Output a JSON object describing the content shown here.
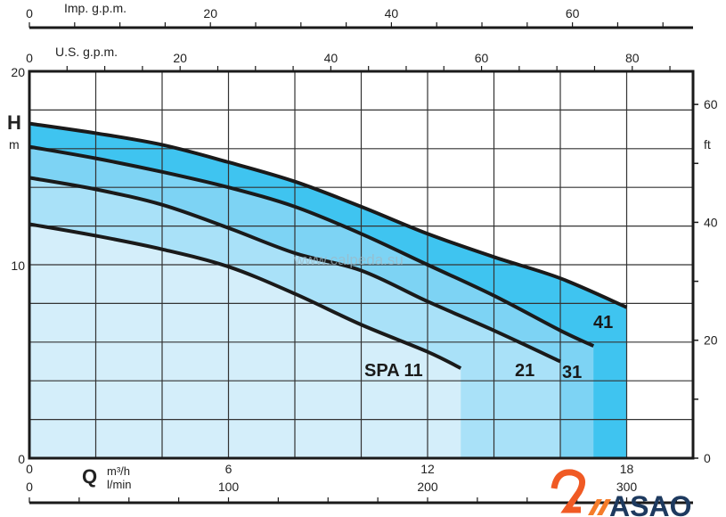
{
  "chart_data": {
    "type": "line",
    "title": "",
    "xlabel": "Q",
    "x_units": [
      "m³/h",
      "l/min"
    ],
    "ylabel": "H",
    "y_units": "m",
    "y2_units": "ft",
    "xlim": [
      0,
      20
    ],
    "ylim": [
      0,
      20
    ],
    "grid": true,
    "x_ticks": [
      "0",
      "6",
      "12",
      "18"
    ],
    "x2_ticks": [
      "0",
      "100",
      "200",
      "300"
    ],
    "y_ticks": [
      "0",
      "10",
      "20"
    ],
    "y2_ticks": [
      "0",
      "20",
      "40",
      "60"
    ],
    "top_axes": [
      {
        "label": "Imp. g.p.m.",
        "ticks": [
          "0",
          "20",
          "40",
          "60"
        ]
      },
      {
        "label": "U.S. g.p.m.",
        "ticks": [
          "0",
          "20",
          "40",
          "60",
          "80"
        ]
      }
    ],
    "series": [
      {
        "name": "41",
        "color": "#3fc4f0",
        "x": [
          0,
          2,
          4,
          6,
          8,
          10,
          12,
          14,
          16,
          18
        ],
        "y": [
          17.3,
          16.8,
          16.2,
          15.3,
          14.3,
          13.0,
          11.6,
          10.4,
          9.3,
          7.8
        ]
      },
      {
        "name": "31",
        "color": "#7dd3f4",
        "x": [
          0,
          2,
          4,
          6,
          8,
          10,
          12,
          14,
          16,
          17
        ],
        "y": [
          16.1,
          15.5,
          14.8,
          14.0,
          13.0,
          11.6,
          10.0,
          8.4,
          6.6,
          5.8
        ]
      },
      {
        "name": "21",
        "color": "#a9e1f8",
        "x": [
          0,
          2,
          4,
          6,
          8,
          10,
          12,
          14,
          16
        ],
        "y": [
          14.5,
          13.9,
          13.1,
          11.9,
          10.6,
          9.7,
          8.1,
          6.6,
          5.0
        ]
      },
      {
        "name": "SPA 11",
        "color": "#d4eefa",
        "x": [
          0,
          2,
          4,
          6,
          8,
          10,
          12,
          13
        ],
        "y": [
          12.1,
          11.5,
          10.8,
          9.9,
          8.5,
          6.9,
          5.5,
          4.65
        ]
      }
    ],
    "watermark": "www.calpeda.su"
  },
  "logo": {
    "text": "ASAO",
    "color": "#1e3a5f",
    "accent": "#f05a24"
  }
}
